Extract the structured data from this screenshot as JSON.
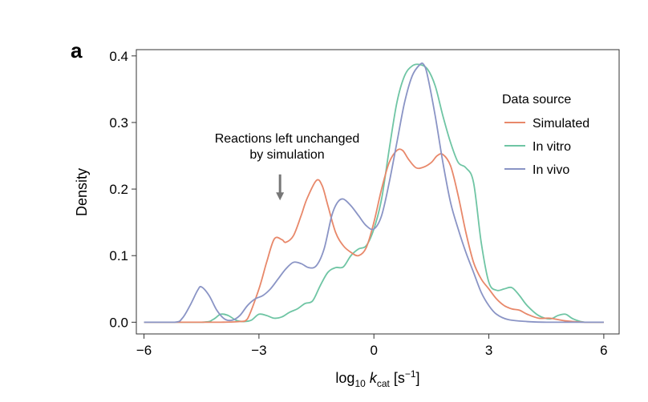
{
  "panel_label": "a",
  "chart_data": {
    "type": "line",
    "title": "",
    "xlabel_parts": {
      "base": "log",
      "base_sub": "10",
      "var": "k",
      "var_sub": "cat",
      "unit_open": " [s",
      "unit_sup": "−1",
      "unit_close": "]"
    },
    "ylabel": "Density",
    "xlim": [
      -6,
      6
    ],
    "ylim": [
      0,
      0.4
    ],
    "x_ticks": [
      -6,
      -3,
      0,
      3,
      6
    ],
    "x_tick_labels": [
      "−6",
      "−3",
      "0",
      "3",
      "6"
    ],
    "y_ticks": [
      0,
      0.1,
      0.2,
      0.3,
      0.4
    ],
    "y_tick_labels": [
      "0.0",
      "0.1",
      "0.2",
      "0.3",
      "0.4"
    ],
    "grid": false,
    "legend": {
      "title": "Data source",
      "placement": "top-right"
    },
    "annotation": {
      "lines": [
        "Reactions left unchanged",
        "by simulation"
      ],
      "arrow_x": -2.45,
      "arrow_y_from": 0.222,
      "arrow_y_to": 0.183
    },
    "series": [
      {
        "name": "Simulated",
        "color": "#e8886a",
        "x": [
          -6,
          -5,
          -4,
          -3.5,
          -3.3,
          -3.0,
          -2.8,
          -2.6,
          -2.4,
          -2.3,
          -2.1,
          -1.9,
          -1.75,
          -1.5,
          -1.35,
          -1.2,
          -1.0,
          -0.8,
          -0.6,
          -0.4,
          -0.2,
          0.0,
          0.2,
          0.4,
          0.6,
          0.75,
          0.9,
          1.1,
          1.3,
          1.5,
          1.65,
          1.8,
          2.0,
          2.2,
          2.4,
          2.6,
          2.8,
          3.0,
          3.2,
          3.4,
          3.6,
          3.8,
          4.0,
          4.3,
          4.6,
          5.0,
          5.5,
          6.0
        ],
        "y": [
          0,
          0,
          0,
          0.001,
          0.005,
          0.05,
          0.09,
          0.125,
          0.124,
          0.12,
          0.13,
          0.16,
          0.185,
          0.213,
          0.205,
          0.175,
          0.135,
          0.115,
          0.105,
          0.1,
          0.112,
          0.15,
          0.2,
          0.24,
          0.258,
          0.258,
          0.245,
          0.232,
          0.233,
          0.24,
          0.25,
          0.252,
          0.235,
          0.19,
          0.135,
          0.09,
          0.065,
          0.05,
          0.035,
          0.025,
          0.02,
          0.018,
          0.012,
          0.006,
          0.006,
          0.002,
          0,
          0
        ]
      },
      {
        "name": "In vitro",
        "color": "#6fc5a4",
        "x": [
          -6,
          -4.5,
          -4.2,
          -4.0,
          -3.8,
          -3.6,
          -3.4,
          -3.2,
          -3.0,
          -2.8,
          -2.6,
          -2.4,
          -2.2,
          -2.0,
          -1.8,
          -1.6,
          -1.4,
          -1.2,
          -1.0,
          -0.8,
          -0.6,
          -0.4,
          -0.2,
          0.0,
          0.2,
          0.4,
          0.6,
          0.8,
          1.0,
          1.2,
          1.4,
          1.6,
          1.8,
          2.0,
          2.2,
          2.4,
          2.6,
          2.8,
          3.0,
          3.2,
          3.4,
          3.6,
          3.8,
          4.0,
          4.3,
          4.6,
          4.8,
          5.0,
          5.2,
          5.5,
          6.0
        ],
        "y": [
          0,
          0,
          0.004,
          0.012,
          0.01,
          0.003,
          0.001,
          0.003,
          0.012,
          0.01,
          0.006,
          0.008,
          0.015,
          0.02,
          0.028,
          0.032,
          0.055,
          0.075,
          0.082,
          0.083,
          0.1,
          0.11,
          0.115,
          0.14,
          0.185,
          0.26,
          0.33,
          0.37,
          0.385,
          0.387,
          0.38,
          0.355,
          0.31,
          0.27,
          0.24,
          0.232,
          0.21,
          0.12,
          0.06,
          0.048,
          0.05,
          0.052,
          0.04,
          0.025,
          0.01,
          0.005,
          0.01,
          0.012,
          0.005,
          0,
          0
        ]
      },
      {
        "name": "In vivo",
        "color": "#8a94c5",
        "x": [
          -6,
          -5.2,
          -5.0,
          -4.8,
          -4.6,
          -4.5,
          -4.3,
          -4.1,
          -3.9,
          -3.7,
          -3.5,
          -3.3,
          -3.1,
          -2.9,
          -2.7,
          -2.5,
          -2.3,
          -2.1,
          -1.9,
          -1.7,
          -1.5,
          -1.3,
          -1.1,
          -0.95,
          -0.8,
          -0.6,
          -0.4,
          -0.2,
          0.0,
          0.2,
          0.4,
          0.6,
          0.8,
          1.0,
          1.2,
          1.3,
          1.4,
          1.6,
          1.8,
          2.0,
          2.2,
          2.4,
          2.6,
          2.8,
          3.0,
          3.2,
          3.5,
          4.0,
          4.5,
          5.0,
          6.0
        ],
        "y": [
          0,
          0,
          0.006,
          0.025,
          0.048,
          0.053,
          0.04,
          0.018,
          0.005,
          0.003,
          0.01,
          0.025,
          0.035,
          0.04,
          0.05,
          0.065,
          0.08,
          0.09,
          0.088,
          0.082,
          0.085,
          0.11,
          0.16,
          0.18,
          0.185,
          0.175,
          0.16,
          0.145,
          0.14,
          0.16,
          0.21,
          0.27,
          0.33,
          0.37,
          0.387,
          0.387,
          0.37,
          0.31,
          0.24,
          0.18,
          0.14,
          0.105,
          0.075,
          0.045,
          0.025,
          0.012,
          0.004,
          0.001,
          0,
          0,
          0
        ]
      }
    ]
  }
}
